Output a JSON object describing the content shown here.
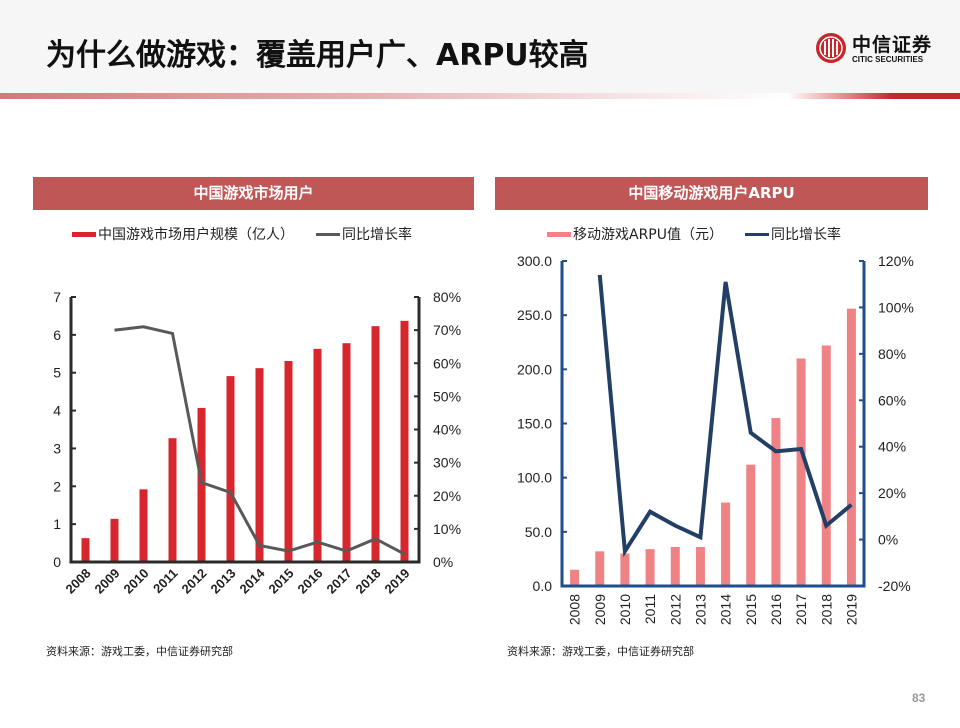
{
  "header": {
    "title": "为什么做游戏：覆盖用户广、ARPU较高",
    "logo_cn": "中信证券",
    "logo_en": "CITIC SECURITIES"
  },
  "colors": {
    "panel_title_bg": "#c05757",
    "left_bar": "#d7262e",
    "left_line": "#595959",
    "right_bar": "#ee8284",
    "right_line": "#243f66",
    "right_axis": "#1f4e8c"
  },
  "left_panel": {
    "title": "中国游戏市场用户",
    "legend_bar": "中国游戏市场用户规模（亿人）",
    "legend_line": "同比增长率",
    "source": "资料来源：游戏工委，中信证券研究部"
  },
  "right_panel": {
    "title": "中国移动游戏用户ARPU",
    "legend_bar": "移动游戏ARPU值（元）",
    "legend_line": "同比增长率",
    "source": "资料来源：游戏工委，中信证券研究部"
  },
  "page_number": "83",
  "chart_data": [
    {
      "type": "bar+line",
      "title": "中国游戏市场用户",
      "categories": [
        "2008",
        "2009",
        "2010",
        "2011",
        "2012",
        "2013",
        "2014",
        "2015",
        "2016",
        "2017",
        "2018",
        "2019"
      ],
      "series": [
        {
          "name": "中国游戏市场用户规模（亿人）",
          "type": "bar",
          "axis": "left",
          "values": [
            0.63,
            1.14,
            1.92,
            3.27,
            4.07,
            4.91,
            5.12,
            5.31,
            5.63,
            5.78,
            6.23,
            6.37
          ]
        },
        {
          "name": "同比增长率",
          "type": "line",
          "axis": "right",
          "values": [
            null,
            70,
            71,
            69,
            24,
            21,
            5,
            3.3,
            6,
            3.3,
            7,
            2.4
          ]
        }
      ],
      "ylim_left": [
        0,
        7
      ],
      "yticks_left": [
        "0",
        "1",
        "2",
        "3",
        "4",
        "5",
        "6",
        "7"
      ],
      "ylim_right": [
        0,
        80
      ],
      "yticks_right": [
        "0%",
        "10%",
        "20%",
        "30%",
        "40%",
        "50%",
        "60%",
        "70%",
        "80%"
      ],
      "grid": false,
      "legend": "top"
    },
    {
      "type": "bar+line",
      "title": "中国移动游戏用户ARPU",
      "categories": [
        "2008",
        "2009",
        "2010",
        "2011",
        "2012",
        "2013",
        "2014",
        "2015",
        "2016",
        "2017",
        "2018",
        "2019"
      ],
      "series": [
        {
          "name": "移动游戏ARPU值（元）",
          "type": "bar",
          "axis": "left",
          "values": [
            15,
            32,
            30,
            34,
            36,
            36,
            77,
            112,
            155,
            210,
            222,
            256
          ]
        },
        {
          "name": "同比增长率",
          "type": "line",
          "axis": "right",
          "values": [
            null,
            114,
            -5,
            12,
            6,
            1,
            111,
            46,
            38,
            39,
            6,
            15
          ]
        }
      ],
      "ylim_left": [
        0,
        300
      ],
      "yticks_left": [
        "0.0",
        "50.0",
        "100.0",
        "150.0",
        "200.0",
        "250.0",
        "300.0"
      ],
      "ylim_right": [
        -20,
        120
      ],
      "yticks_right": [
        "-20%",
        "0%",
        "20%",
        "40%",
        "60%",
        "80%",
        "100%",
        "120%"
      ],
      "grid": false,
      "legend": "top"
    }
  ]
}
